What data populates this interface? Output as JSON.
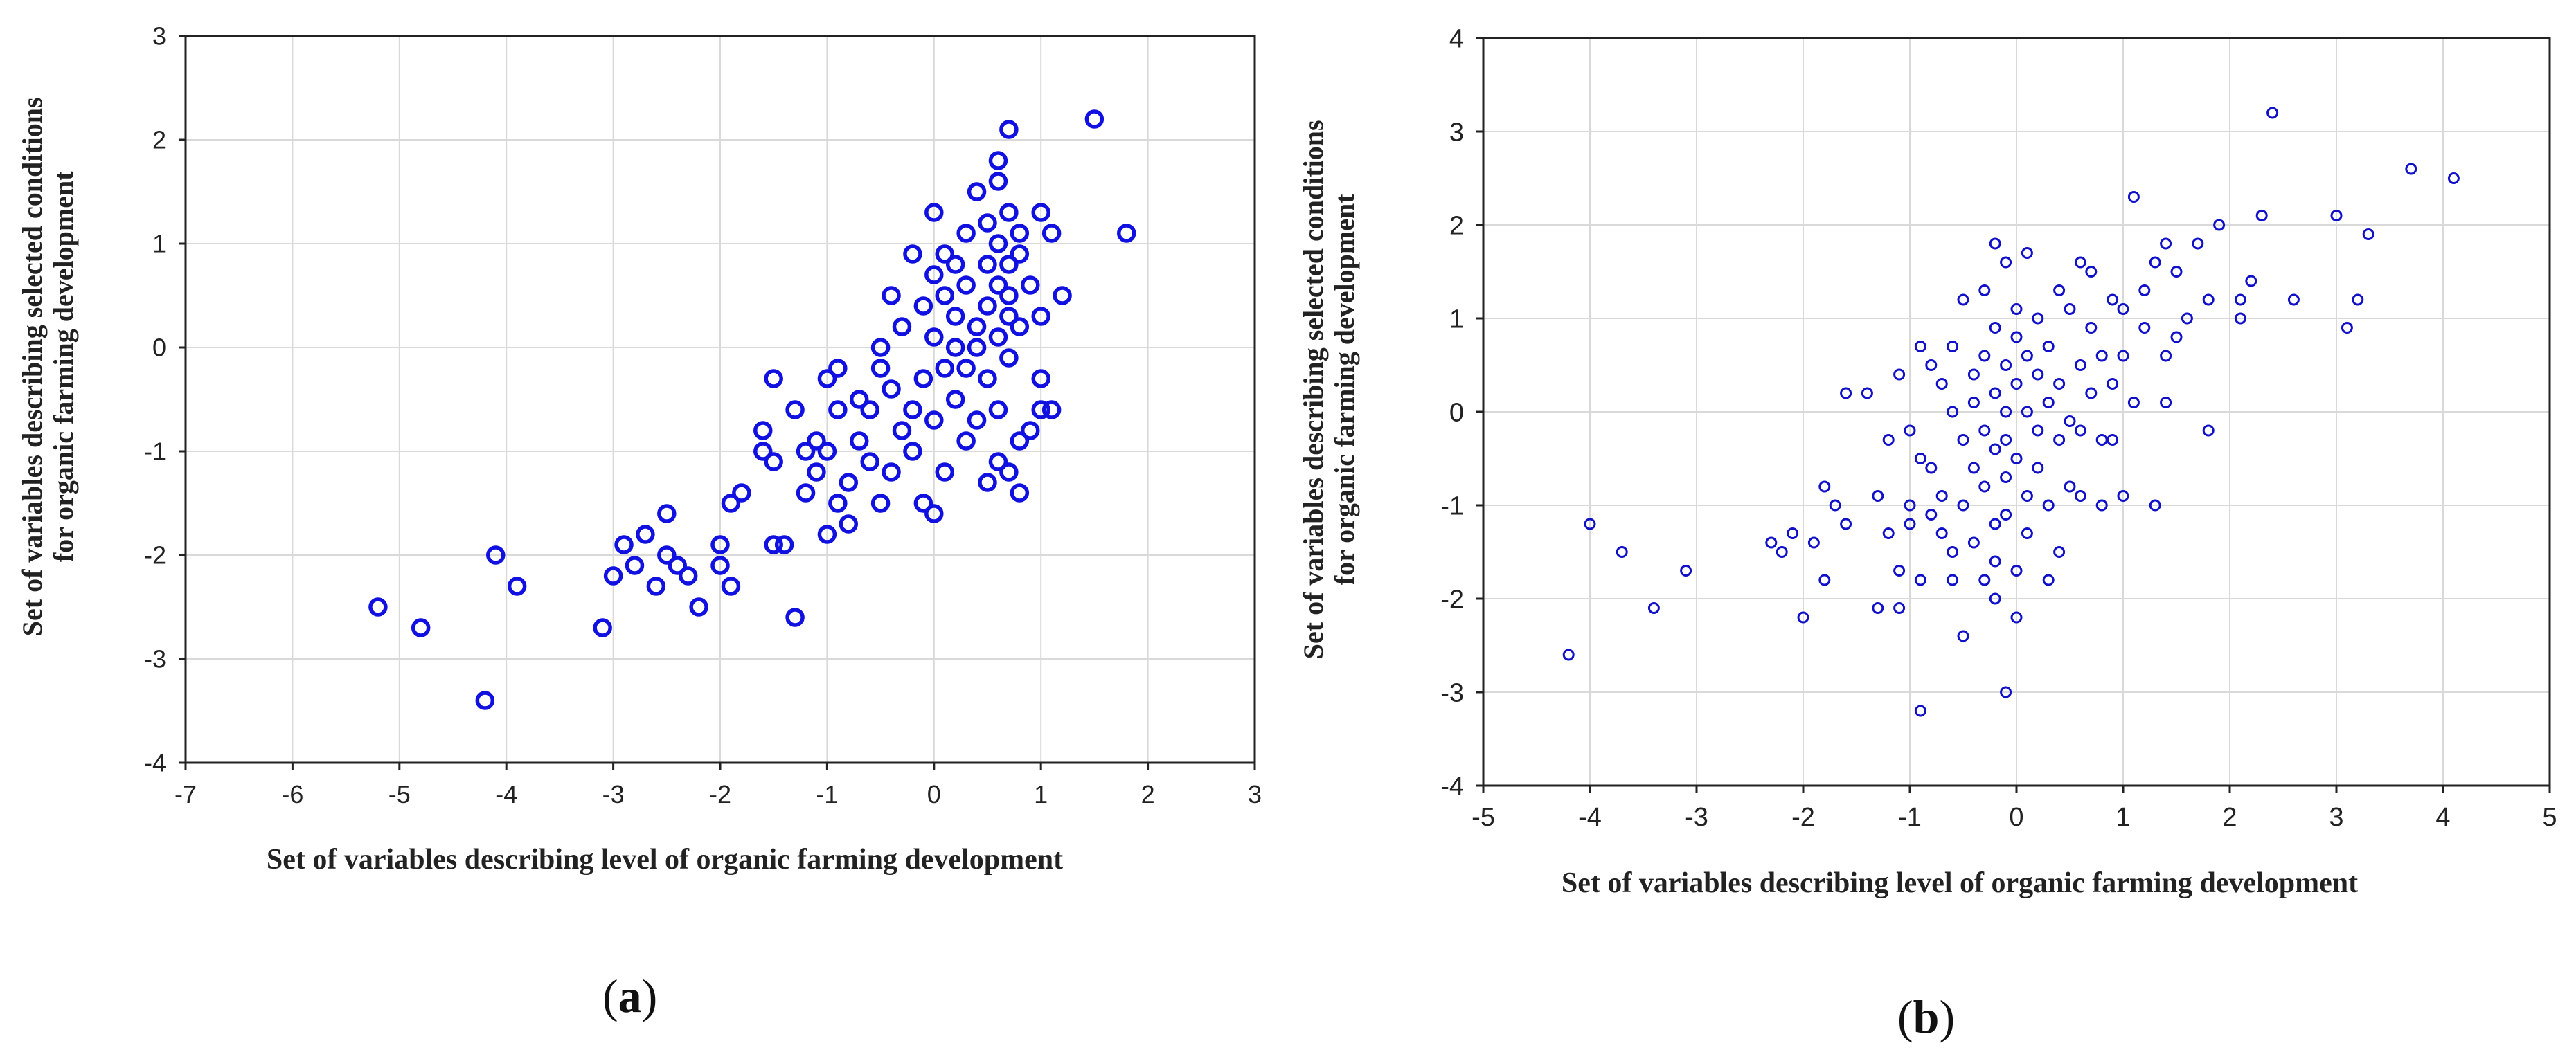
{
  "figure": {
    "caption_a": "a",
    "caption_b": "b"
  },
  "chart_data": [
    {
      "id": "a",
      "type": "scatter",
      "xlabel": "Set of variables describing level of organic farming development",
      "ylabel_lines": [
        "Set of variables describing selected conditions",
        "for organic farming development"
      ],
      "xlim": [
        -7,
        3
      ],
      "ylim": [
        -4,
        3
      ],
      "xticks": [
        -7,
        -6,
        -5,
        -4,
        -3,
        -2,
        -1,
        0,
        1,
        2,
        3
      ],
      "yticks": [
        -4,
        -3,
        -2,
        -1,
        0,
        1,
        2,
        3
      ],
      "grid": true,
      "marker_color": "#1010e0",
      "points": [
        [
          -5.2,
          -2.5
        ],
        [
          -4.8,
          -2.7
        ],
        [
          -4.2,
          -3.4
        ],
        [
          -4.1,
          -2.0
        ],
        [
          -3.9,
          -2.3
        ],
        [
          -3.1,
          -2.7
        ],
        [
          -3.0,
          -2.2
        ],
        [
          -2.9,
          -1.9
        ],
        [
          -2.8,
          -2.1
        ],
        [
          -2.7,
          -1.8
        ],
        [
          -2.6,
          -2.3
        ],
        [
          -2.5,
          -2.0
        ],
        [
          -2.5,
          -1.6
        ],
        [
          -2.4,
          -2.1
        ],
        [
          -2.3,
          -2.2
        ],
        [
          -2.2,
          -2.5
        ],
        [
          -2.0,
          -1.9
        ],
        [
          -2.0,
          -2.1
        ],
        [
          -1.9,
          -2.3
        ],
        [
          -1.9,
          -1.5
        ],
        [
          -1.8,
          -1.4
        ],
        [
          -1.6,
          -0.8
        ],
        [
          -1.6,
          -1.0
        ],
        [
          -1.5,
          -0.3
        ],
        [
          -1.5,
          -1.1
        ],
        [
          -1.5,
          -1.9
        ],
        [
          -1.4,
          -1.9
        ],
        [
          -1.3,
          -2.6
        ],
        [
          -1.3,
          -0.6
        ],
        [
          -1.2,
          -1.0
        ],
        [
          -1.2,
          -1.4
        ],
        [
          -1.1,
          -0.9
        ],
        [
          -1.1,
          -1.2
        ],
        [
          -1.0,
          -1.8
        ],
        [
          -1.0,
          -0.3
        ],
        [
          -1.0,
          -1.0
        ],
        [
          -0.9,
          -0.2
        ],
        [
          -0.9,
          -0.6
        ],
        [
          -0.9,
          -1.5
        ],
        [
          -0.8,
          -1.7
        ],
        [
          -0.8,
          -1.3
        ],
        [
          -0.7,
          -0.5
        ],
        [
          -0.7,
          -0.9
        ],
        [
          -0.6,
          -1.1
        ],
        [
          -0.6,
          -0.6
        ],
        [
          -0.5,
          -0.2
        ],
        [
          -0.5,
          0.0
        ],
        [
          -0.5,
          -1.5
        ],
        [
          -0.4,
          -1.2
        ],
        [
          -0.4,
          -0.4
        ],
        [
          -0.4,
          0.5
        ],
        [
          -0.3,
          -0.8
        ],
        [
          -0.3,
          0.2
        ],
        [
          -0.2,
          -1.0
        ],
        [
          -0.2,
          -0.6
        ],
        [
          -0.2,
          0.9
        ],
        [
          -0.1,
          -0.3
        ],
        [
          -0.1,
          0.4
        ],
        [
          -0.1,
          -1.5
        ],
        [
          0.0,
          1.3
        ],
        [
          0.0,
          -0.7
        ],
        [
          0.0,
          0.1
        ],
        [
          0.0,
          -1.6
        ],
        [
          0.0,
          0.7
        ],
        [
          0.1,
          -0.2
        ],
        [
          0.1,
          0.5
        ],
        [
          0.1,
          -1.2
        ],
        [
          0.1,
          0.9
        ],
        [
          0.2,
          0.0
        ],
        [
          0.2,
          -0.5
        ],
        [
          0.2,
          0.3
        ],
        [
          0.2,
          0.8
        ],
        [
          0.3,
          -0.9
        ],
        [
          0.3,
          0.6
        ],
        [
          0.3,
          1.1
        ],
        [
          0.3,
          -0.2
        ],
        [
          0.4,
          0.2
        ],
        [
          0.4,
          -0.7
        ],
        [
          0.4,
          1.5
        ],
        [
          0.4,
          0.0
        ],
        [
          0.5,
          0.8
        ],
        [
          0.5,
          -0.3
        ],
        [
          0.5,
          0.4
        ],
        [
          0.5,
          1.2
        ],
        [
          0.5,
          -1.3
        ],
        [
          0.6,
          1.8
        ],
        [
          0.6,
          0.6
        ],
        [
          0.6,
          -0.6
        ],
        [
          0.6,
          0.1
        ],
        [
          0.6,
          1.0
        ],
        [
          0.6,
          -1.1
        ],
        [
          0.6,
          1.6
        ],
        [
          0.7,
          0.3
        ],
        [
          0.7,
          0.8
        ],
        [
          0.7,
          -1.2
        ],
        [
          0.7,
          1.3
        ],
        [
          0.7,
          -0.1
        ],
        [
          0.7,
          2.1
        ],
        [
          0.7,
          0.5
        ],
        [
          0.8,
          -1.4
        ],
        [
          0.8,
          0.9
        ],
        [
          0.8,
          -0.9
        ],
        [
          0.8,
          0.2
        ],
        [
          0.8,
          1.1
        ],
        [
          0.9,
          -0.8
        ],
        [
          0.9,
          0.6
        ],
        [
          1.0,
          1.3
        ],
        [
          1.0,
          -0.3
        ],
        [
          1.0,
          0.3
        ],
        [
          1.0,
          -0.6
        ],
        [
          1.1,
          1.1
        ],
        [
          1.1,
          -0.6
        ],
        [
          1.2,
          0.5
        ],
        [
          1.5,
          2.2
        ],
        [
          1.8,
          1.1
        ]
      ]
    },
    {
      "id": "b",
      "type": "scatter",
      "xlabel": "Set of variables describing level of organic farming development",
      "ylabel_lines": [
        "Set of variables describing selected conditions",
        "for organic farming development"
      ],
      "xlim": [
        -5,
        5
      ],
      "ylim": [
        -4,
        4
      ],
      "xticks": [
        -5,
        -4,
        -3,
        -2,
        -1,
        0,
        1,
        2,
        3,
        4,
        5
      ],
      "yticks": [
        -4,
        -3,
        -2,
        -1,
        0,
        1,
        2,
        3,
        4
      ],
      "grid": true,
      "marker_color": "#1010c8",
      "points": [
        [
          -4.2,
          -2.6
        ],
        [
          -4.0,
          -1.2
        ],
        [
          -3.7,
          -1.5
        ],
        [
          -3.4,
          -2.1
        ],
        [
          -3.1,
          -1.7
        ],
        [
          -2.3,
          -1.4
        ],
        [
          -2.2,
          -1.5
        ],
        [
          -2.1,
          -1.3
        ],
        [
          -2.0,
          -2.2
        ],
        [
          -1.9,
          -1.4
        ],
        [
          -1.8,
          -1.8
        ],
        [
          -1.8,
          -0.8
        ],
        [
          -1.7,
          -1.0
        ],
        [
          -1.6,
          -1.2
        ],
        [
          -1.6,
          0.2
        ],
        [
          -1.4,
          0.2
        ],
        [
          -1.3,
          -0.9
        ],
        [
          -1.3,
          -2.1
        ],
        [
          -1.2,
          -1.3
        ],
        [
          -1.2,
          -0.3
        ],
        [
          -1.1,
          -1.7
        ],
        [
          -1.1,
          -2.1
        ],
        [
          -1.1,
          0.4
        ],
        [
          -1.0,
          -1.0
        ],
        [
          -1.0,
          -0.2
        ],
        [
          -1.0,
          -1.2
        ],
        [
          -0.9,
          0.7
        ],
        [
          -0.9,
          -1.8
        ],
        [
          -0.9,
          -3.2
        ],
        [
          -0.9,
          -0.5
        ],
        [
          -0.8,
          -1.1
        ],
        [
          -0.8,
          0.5
        ],
        [
          -0.8,
          -0.6
        ],
        [
          -0.7,
          -1.3
        ],
        [
          -0.7,
          0.3
        ],
        [
          -0.7,
          -0.9
        ],
        [
          -0.6,
          -1.8
        ],
        [
          -0.6,
          0.0
        ],
        [
          -0.6,
          -1.5
        ],
        [
          -0.6,
          0.7
        ],
        [
          -0.5,
          -0.3
        ],
        [
          -0.5,
          -1.0
        ],
        [
          -0.5,
          -2.4
        ],
        [
          -0.5,
          1.2
        ],
        [
          -0.4,
          -0.6
        ],
        [
          -0.4,
          0.4
        ],
        [
          -0.4,
          -1.4
        ],
        [
          -0.4,
          0.1
        ],
        [
          -0.3,
          -1.8
        ],
        [
          -0.3,
          -0.8
        ],
        [
          -0.3,
          0.6
        ],
        [
          -0.3,
          -0.2
        ],
        [
          -0.3,
          1.3
        ],
        [
          -0.2,
          -1.2
        ],
        [
          -0.2,
          -0.4
        ],
        [
          -0.2,
          0.2
        ],
        [
          -0.2,
          1.8
        ],
        [
          -0.2,
          -1.6
        ],
        [
          -0.2,
          0.9
        ],
        [
          -0.2,
          -2.0
        ],
        [
          -0.1,
          -0.7
        ],
        [
          -0.1,
          0.0
        ],
        [
          -0.1,
          0.5
        ],
        [
          -0.1,
          -1.1
        ],
        [
          -0.1,
          1.6
        ],
        [
          -0.1,
          -3.0
        ],
        [
          -0.1,
          -0.3
        ],
        [
          0.0,
          0.3
        ],
        [
          0.0,
          -1.7
        ],
        [
          0.0,
          0.8
        ],
        [
          0.0,
          -0.5
        ],
        [
          0.0,
          -2.2
        ],
        [
          0.0,
          1.1
        ],
        [
          0.1,
          0.0
        ],
        [
          0.1,
          -0.9
        ],
        [
          0.1,
          0.6
        ],
        [
          0.1,
          -1.3
        ],
        [
          0.1,
          1.7
        ],
        [
          0.2,
          -0.2
        ],
        [
          0.2,
          0.4
        ],
        [
          0.2,
          -0.6
        ],
        [
          0.2,
          1.0
        ],
        [
          0.3,
          -1.0
        ],
        [
          0.3,
          0.1
        ],
        [
          0.3,
          -1.8
        ],
        [
          0.3,
          0.7
        ],
        [
          0.4,
          -0.3
        ],
        [
          0.4,
          1.3
        ],
        [
          0.4,
          -1.5
        ],
        [
          0.4,
          0.3
        ],
        [
          0.5,
          -0.1
        ],
        [
          0.5,
          1.1
        ],
        [
          0.5,
          -0.8
        ],
        [
          0.6,
          0.5
        ],
        [
          0.6,
          1.6
        ],
        [
          0.6,
          -0.2
        ],
        [
          0.6,
          -0.9
        ],
        [
          0.7,
          0.9
        ],
        [
          0.7,
          0.2
        ],
        [
          0.7,
          1.5
        ],
        [
          0.8,
          -0.3
        ],
        [
          0.8,
          0.6
        ],
        [
          0.8,
          -1.0
        ],
        [
          0.9,
          1.2
        ],
        [
          0.9,
          0.3
        ],
        [
          0.9,
          -0.3
        ],
        [
          1.0,
          1.1
        ],
        [
          1.0,
          0.6
        ],
        [
          1.0,
          -0.9
        ],
        [
          1.1,
          0.1
        ],
        [
          1.1,
          2.3
        ],
        [
          1.2,
          1.3
        ],
        [
          1.2,
          0.9
        ],
        [
          1.3,
          1.6
        ],
        [
          1.3,
          -1.0
        ],
        [
          1.4,
          0.6
        ],
        [
          1.4,
          1.8
        ],
        [
          1.4,
          0.1
        ],
        [
          1.5,
          1.5
        ],
        [
          1.5,
          0.8
        ],
        [
          1.6,
          1.0
        ],
        [
          1.7,
          1.8
        ],
        [
          1.8,
          1.2
        ],
        [
          1.8,
          -0.2
        ],
        [
          1.9,
          2.0
        ],
        [
          2.1,
          1.2
        ],
        [
          2.1,
          1.0
        ],
        [
          2.2,
          1.4
        ],
        [
          2.3,
          2.1
        ],
        [
          2.4,
          3.2
        ],
        [
          2.6,
          1.2
        ],
        [
          3.0,
          2.1
        ],
        [
          3.1,
          0.9
        ],
        [
          3.2,
          1.2
        ],
        [
          3.3,
          1.9
        ],
        [
          3.7,
          2.6
        ],
        [
          4.1,
          2.5
        ]
      ]
    }
  ]
}
